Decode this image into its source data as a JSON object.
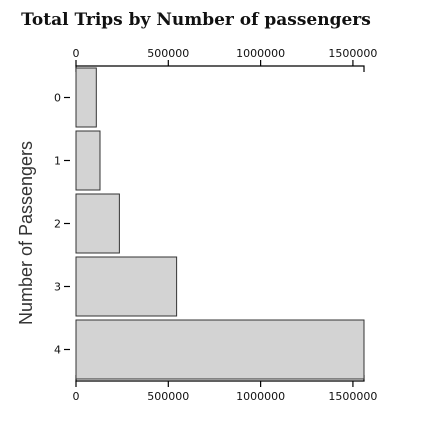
{
  "chart_data": {
    "type": "bar",
    "orientation": "horizontal",
    "title": "Total Trips by Number of passengers",
    "ylabel": "Number of Passengers",
    "xlabel": "",
    "categories": [
      "0",
      "1",
      "2",
      "3",
      "4"
    ],
    "values": [
      110000,
      130000,
      235000,
      545000,
      1560000
    ],
    "xlim": [
      0,
      1560000
    ],
    "x_ticks": [
      0,
      500000,
      1000000,
      1500000
    ],
    "x_tick_labels": [
      "0",
      "500000",
      "1000000",
      "1500000"
    ],
    "x_axis_top": true,
    "x_axis_bottom": true,
    "grid": false,
    "colors": {
      "bar_fill": "#d3d3d3",
      "bar_stroke": "#333333",
      "axis": "#000000"
    }
  }
}
